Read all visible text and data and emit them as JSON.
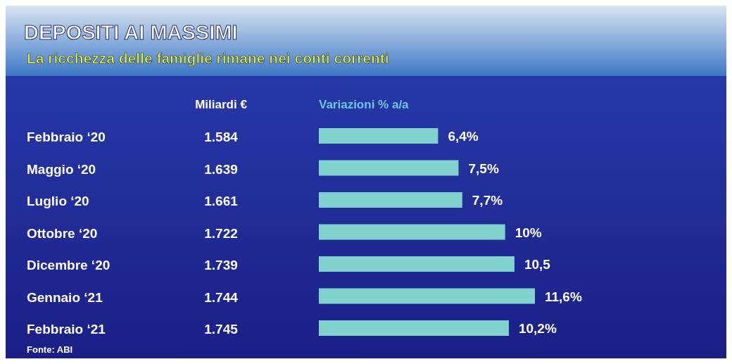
{
  "chart_data": {
    "type": "bar",
    "orientation": "horizontal",
    "title": "DEPOSITI AI MASSIMI",
    "subtitle": "La ricchezza delle famiglie rimane nei conti correnti",
    "xlabel": "Variazioni % a/a",
    "categories": [
      "Febbraio ‘20",
      "Maggio ‘20",
      "Luglio ‘20",
      "Ottobre ‘20",
      "Dicembre ‘20",
      "Gennaio ‘21",
      "Febbraio ‘21"
    ],
    "values": [
      6.4,
      7.5,
      7.7,
      10,
      10.5,
      11.6,
      10.2
    ],
    "value_labels": [
      "6,4%",
      "7,5%",
      "7,7%",
      "10%",
      "10,5",
      "11,6%",
      "10,2%"
    ],
    "color": "#7fd3cc",
    "annotations": [
      "Miliardi €",
      "1.584",
      "1.639",
      "1.661",
      "1.722",
      "1.739",
      "1.744",
      "1.745",
      "Fonte: ABI"
    ]
  }
}
